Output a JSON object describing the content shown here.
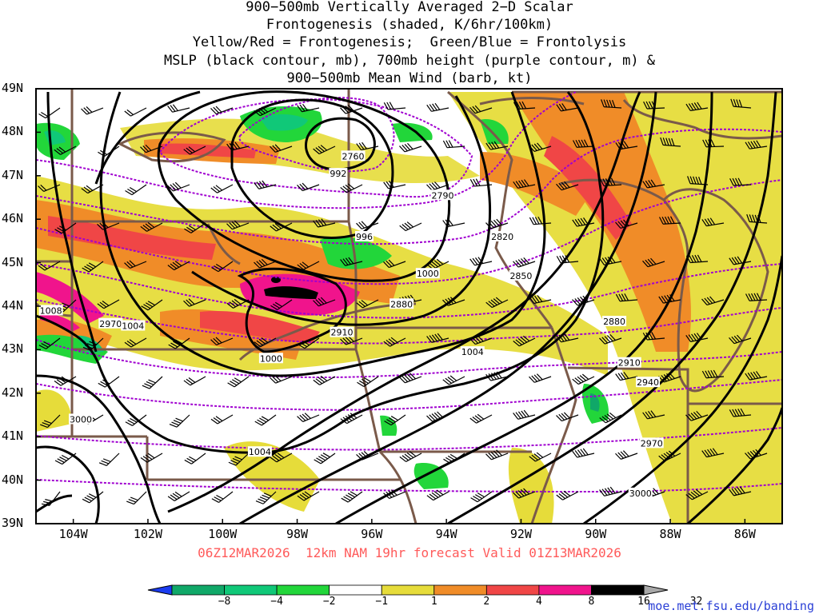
{
  "title_lines": [
    "900−500mb Vertically Averaged 2−D Scalar",
    "Frontogenesis (shaded, K/6hr/100km)",
    "Yellow/Red = Frontogenesis;  Green/Blue = Frontolysis",
    "MSLP (black contour, mb), 700mb height (purple contour, m) &",
    "900−500mb Mean Wind (barb, kt)"
  ],
  "map": {
    "lon_range": [
      -105,
      -85
    ],
    "lat_range": [
      39,
      49
    ],
    "x_tick_labels": [
      "104W",
      "102W",
      "100W",
      "98W",
      "96W",
      "94W",
      "92W",
      "90W",
      "88W",
      "86W"
    ],
    "x_tick_lons": [
      -104,
      -102,
      -100,
      -98,
      -96,
      -94,
      -92,
      -90,
      -88,
      -86
    ],
    "y_tick_labels": [
      "49N",
      "48N",
      "47N",
      "46N",
      "45N",
      "44N",
      "43N",
      "42N",
      "41N",
      "40N",
      "39N"
    ],
    "y_tick_lats": [
      49,
      48,
      47,
      46,
      45,
      44,
      43,
      42,
      41,
      40,
      39
    ],
    "colors": {
      "mslp_contour": "#000000",
      "height_contour": "#a000d0",
      "border": "#7a5a4a",
      "barb": "#000000"
    },
    "mslp_labels": [
      {
        "text": "992",
        "lon": -96.9,
        "lat": 47.05
      },
      {
        "text": "996",
        "lon": -96.2,
        "lat": 45.6
      },
      {
        "text": "1000",
        "lon": -94.5,
        "lat": 44.75
      },
      {
        "text": "1000",
        "lon": -98.7,
        "lat": 42.8
      },
      {
        "text": "1004",
        "lon": -93.3,
        "lat": 42.95
      },
      {
        "text": "1004",
        "lon": -102.4,
        "lat": 43.55
      },
      {
        "text": "1004",
        "lon": -99.0,
        "lat": 40.65
      },
      {
        "text": "1008",
        "lon": -104.6,
        "lat": 43.9
      }
    ],
    "height_labels": [
      {
        "text": "2760",
        "lon": -96.5,
        "lat": 47.45
      },
      {
        "text": "2790",
        "lon": -94.1,
        "lat": 46.55
      },
      {
        "text": "2820",
        "lon": -92.5,
        "lat": 45.6
      },
      {
        "text": "2850",
        "lon": -92.0,
        "lat": 44.7
      },
      {
        "text": "2880",
        "lon": -95.2,
        "lat": 44.05
      },
      {
        "text": "2880",
        "lon": -89.5,
        "lat": 43.65
      },
      {
        "text": "2910",
        "lon": -96.8,
        "lat": 43.4
      },
      {
        "text": "2910",
        "lon": -89.1,
        "lat": 42.7
      },
      {
        "text": "2940",
        "lon": -88.6,
        "lat": 42.25
      },
      {
        "text": "2970",
        "lon": -103.0,
        "lat": 43.6
      },
      {
        "text": "2970",
        "lon": -88.5,
        "lat": 40.85
      },
      {
        "text": "3000",
        "lon": -103.8,
        "lat": 41.4
      },
      {
        "text": "3000",
        "lon": -88.8,
        "lat": 39.7
      }
    ]
  },
  "valid_line": "06Z12MAR2026  12km NAM 19hr forecast Valid 01Z13MAR2026",
  "colorbar": {
    "labels": [
      "−8",
      "−4",
      "−2",
      "−1",
      "1",
      "2",
      "4",
      "8",
      "16",
      "32"
    ],
    "colors": [
      "#1b3cf0",
      "#10a868",
      "#10c878",
      "#22d63a",
      "#ffffff",
      "#e6dc3a",
      "#f08c28",
      "#f04646",
      "#f0148c",
      "#000000",
      "#a8a8a8"
    ]
  },
  "site_url": "moe.met.fsu.edu/banding"
}
